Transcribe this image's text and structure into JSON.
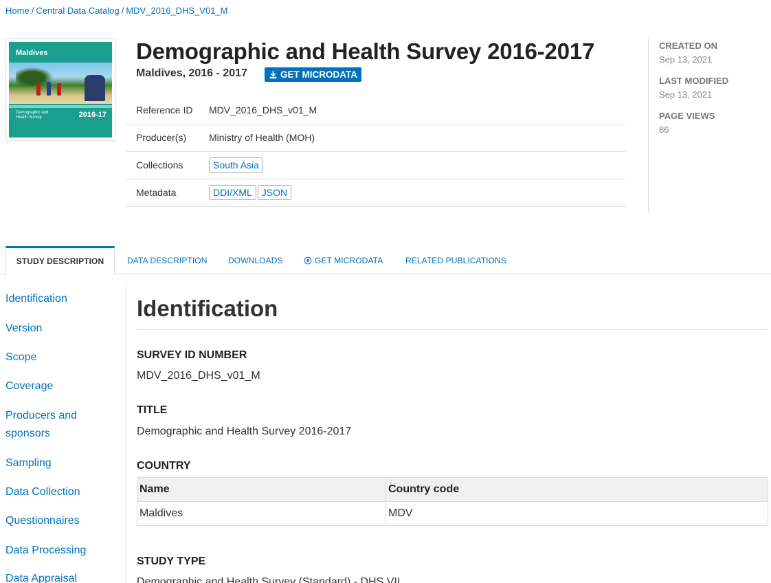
{
  "breadcrumb": {
    "home": "Home",
    "catalog": "Central Data Catalog",
    "current": "MDV_2016_DHS_V01_M",
    "sep": "/"
  },
  "thumbnail": {
    "title": "Maldives",
    "subtitle": "Demographic and Health Survey",
    "year": "2016-17"
  },
  "study": {
    "title": "Demographic and Health Survey 2016-2017",
    "subtitle": "Maldives, 2016 - 2017",
    "get_microdata_label": "GET MICRODATA"
  },
  "meta": {
    "reference_id_label": "Reference ID",
    "reference_id": "MDV_2016_DHS_v01_M",
    "producers_label": "Producer(s)",
    "producers": "Ministry of Health (MOH)",
    "collections_label": "Collections",
    "collections": [
      "South Asia"
    ],
    "metadata_label": "Metadata",
    "metadata_links": [
      "DDI/XML",
      "JSON"
    ]
  },
  "stats": {
    "created_label": "CREATED ON",
    "created": "Sep 13, 2021",
    "modified_label": "LAST MODIFIED",
    "modified": "Sep 13, 2021",
    "views_label": "PAGE VIEWS",
    "views": "86"
  },
  "tabs": [
    {
      "label": "STUDY DESCRIPTION"
    },
    {
      "label": "DATA DESCRIPTION"
    },
    {
      "label": "DOWNLOADS"
    },
    {
      "label": "GET MICRODATA"
    },
    {
      "label": "RELATED PUBLICATIONS"
    }
  ],
  "nav": [
    "Identification",
    "Version",
    "Scope",
    "Coverage",
    "Producers and",
    "sponsors",
    "Sampling",
    "Data Collection",
    "Questionnaires",
    "Data Processing",
    "Data Appraisal"
  ],
  "content": {
    "heading": "Identification",
    "survey_id_label": "SURVEY ID NUMBER",
    "survey_id": "MDV_2016_DHS_v01_M",
    "title_label": "TITLE",
    "title": "Demographic and Health Survey 2016-2017",
    "country_label": "COUNTRY",
    "country_table": {
      "headers": [
        "Name",
        "Country code"
      ],
      "rows": [
        [
          "Maldives",
          "MDV"
        ]
      ]
    },
    "study_type_label": "STUDY TYPE",
    "study_type": "Demographic and Health Survey (Standard) - DHS VII"
  },
  "colors": {
    "link": "#0071bc",
    "accent": "#0071bc",
    "cover": "#1a9e8e"
  }
}
